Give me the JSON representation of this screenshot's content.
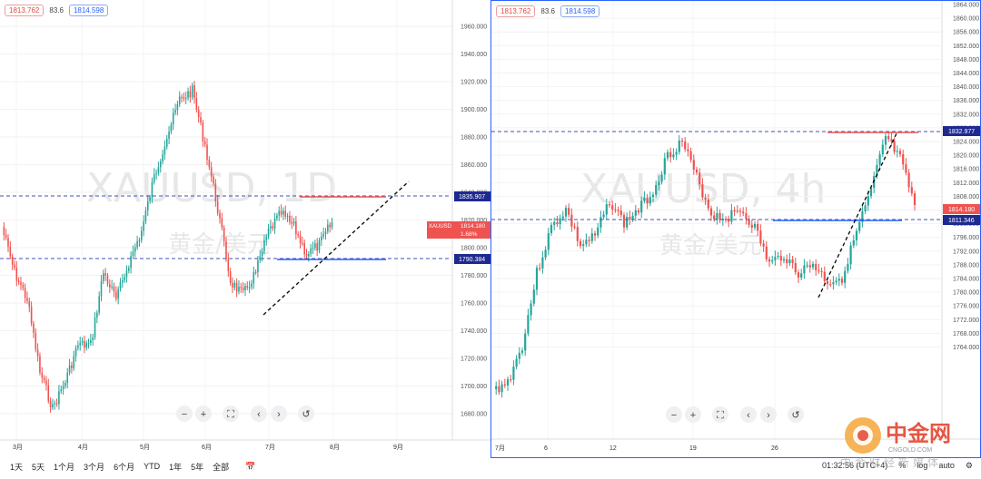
{
  "left_panel": {
    "header": {
      "red_value": "1813.762",
      "mid_value": "83.6",
      "blue_value": "1814.598"
    },
    "watermark": {
      "symbol": "XAUUSD, 1D",
      "subtitle": "黄金/美元"
    },
    "price_axis": {
      "ticks": [
        "1960.000",
        "1940.000",
        "1920.000",
        "1900.000",
        "1880.000",
        "1860.000",
        "1840.000",
        "1820.000",
        "1800.000",
        "1780.000",
        "1760.000",
        "1740.000",
        "1720.000",
        "1700.000",
        "1680.000"
      ],
      "labels": {
        "upper_line": "1835.907",
        "symbol": "XAUUSD",
        "price": "1814.180",
        "change": "1.68%",
        "lower_line": "1790.384"
      }
    },
    "time_axis": [
      "3月",
      "4月",
      "5月",
      "6月",
      "7月",
      "8月",
      "9月"
    ],
    "controls": [
      "−",
      "+",
      "⛶",
      "‹",
      "›",
      "↺"
    ]
  },
  "right_panel": {
    "header": {
      "red_value": "1813.762",
      "mid_value": "83.6",
      "blue_value": "1814.598"
    },
    "watermark": {
      "symbol": "XAUUSD, 4h",
      "subtitle": "黄金/美元"
    },
    "price_axis": {
      "ticks": [
        "1864.000",
        "1860.000",
        "1856.000",
        "1852.000",
        "1848.000",
        "1844.000",
        "1840.000",
        "1836.000",
        "1832.000",
        "1828.000",
        "1824.000",
        "1820.000",
        "1816.000",
        "1812.000",
        "1808.000",
        "1804.000",
        "1800.000",
        "1796.000",
        "1792.000",
        "1788.000",
        "1784.000",
        "1780.000",
        "1776.000",
        "1772.000",
        "1768.000",
        "1764.000"
      ],
      "labels": {
        "upper_line": "1832.977",
        "price": "1814.180",
        "lower_line": "1811.346"
      }
    },
    "time_axis": [
      "7月",
      "6",
      "12",
      "19",
      "26"
    ],
    "controls": [
      "−",
      "+",
      "⛶",
      "‹",
      "›",
      "↺"
    ]
  },
  "bottom_bar": {
    "timeframes": [
      "1天",
      "5天",
      "1个月",
      "3个月",
      "6个月",
      "YTD",
      "1年",
      "5年",
      "全部"
    ],
    "time_display": "01:32:56 (UTC+4)",
    "options": [
      "%",
      "log",
      "auto",
      "⚙"
    ]
  },
  "logo": {
    "brand": "中金网",
    "domain": "CNGOLD.COM",
    "tagline": "中金财经新媒体"
  },
  "colors": {
    "up": "#26a69a",
    "down": "#ef5350",
    "red_line": "#ef5350",
    "blue_line": "#2962ff",
    "blue_dash": "#3f51b5"
  }
}
